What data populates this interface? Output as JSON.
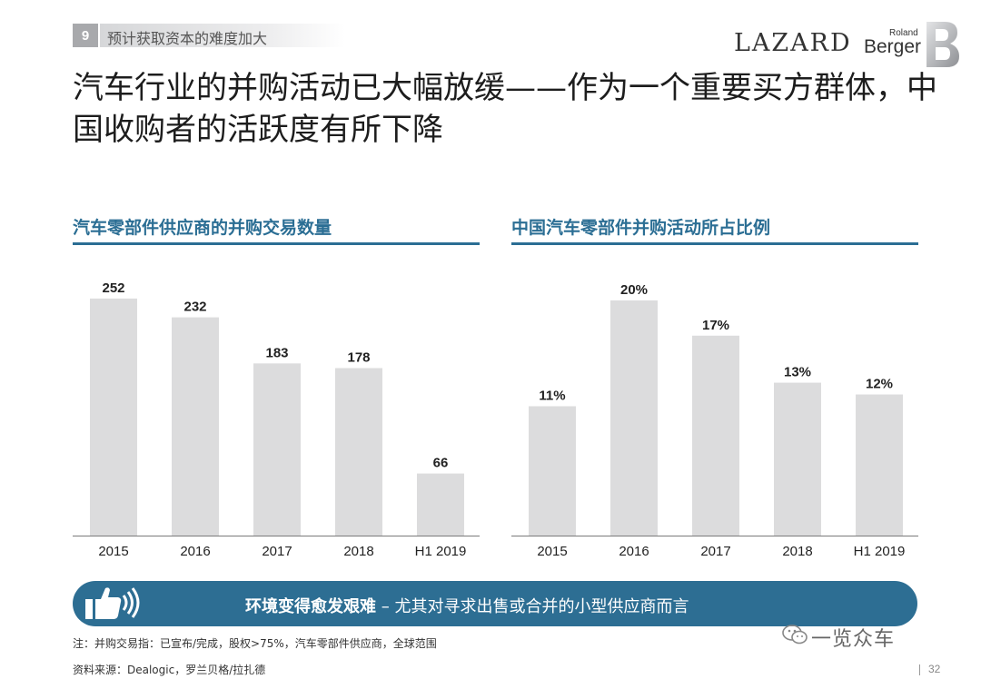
{
  "header": {
    "section_number": "9",
    "section_title": "预计获取资本的难度加大",
    "logo_lazard": "LAZARD",
    "logo_rb_small": "Roland",
    "logo_rb": "Berger"
  },
  "headline": "汽车行业的并购活动已大幅放缓——作为一个重要买方群体，中国收购者的活跃度有所下降",
  "chart_data": [
    {
      "type": "bar",
      "title": "汽车零部件供应商的并购交易数量",
      "categories": [
        "2015",
        "2016",
        "2017",
        "2018",
        "H1 2019"
      ],
      "values": [
        252,
        232,
        183,
        178,
        66
      ],
      "labels": [
        "252",
        "232",
        "183",
        "178",
        "66"
      ],
      "ylim": [
        0,
        275
      ],
      "bar_color": "#dcdcdd",
      "grid": false
    },
    {
      "type": "bar",
      "title": "中国汽车零部件并购活动所占比例",
      "categories": [
        "2015",
        "2016",
        "2017",
        "2018",
        "H1 2019"
      ],
      "values": [
        11,
        20,
        17,
        13,
        12
      ],
      "labels": [
        "11%",
        "20%",
        "17%",
        "13%",
        "12%"
      ],
      "ylim": [
        0,
        22
      ],
      "bar_color": "#dcdcdd",
      "grid": false
    }
  ],
  "banner": {
    "bold": "环境变得愈发艰难",
    "rest": " – 尤其对寻求出售或合并的小型供应商而言",
    "icon": "thumbs-up-icon"
  },
  "footer": {
    "note": "注：并购交易指：已宣布/完成，股权>75%，汽车零部件供应商，全球范围",
    "source": "资料来源：Dealogic，罗兰贝格/拉扎德",
    "page_number": "32",
    "watermark": "一览众车"
  },
  "colors": {
    "accent": "#2b6e94",
    "banner": "#2d6e93",
    "bar": "#dcdcdd",
    "badge": "#a8a9ac"
  }
}
